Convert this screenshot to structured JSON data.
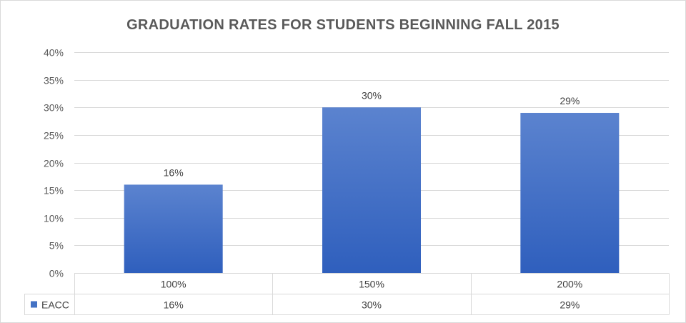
{
  "chart_data": {
    "type": "bar",
    "title": "GRADUATION RATES FOR STUDENTS BEGINNING FALL 2015",
    "categories": [
      "100%",
      "150%",
      "200%"
    ],
    "series": [
      {
        "name": "EACC",
        "values": [
          16,
          30,
          29
        ],
        "labels": [
          "16%",
          "30%",
          "29%"
        ],
        "color": "#4472c4"
      }
    ],
    "ylim": [
      0,
      40
    ],
    "yticks": [
      0,
      5,
      10,
      15,
      20,
      25,
      30,
      35,
      40
    ],
    "ytick_labels": [
      "0%",
      "5%",
      "10%",
      "15%",
      "20%",
      "25%",
      "30%",
      "35%",
      "40%"
    ],
    "grid": true,
    "data_table": true,
    "colors": {
      "bar_top": "#5b83cf",
      "bar_bottom": "#2f5fbd",
      "grid": "#d9d9d9",
      "text": "#595959"
    }
  }
}
